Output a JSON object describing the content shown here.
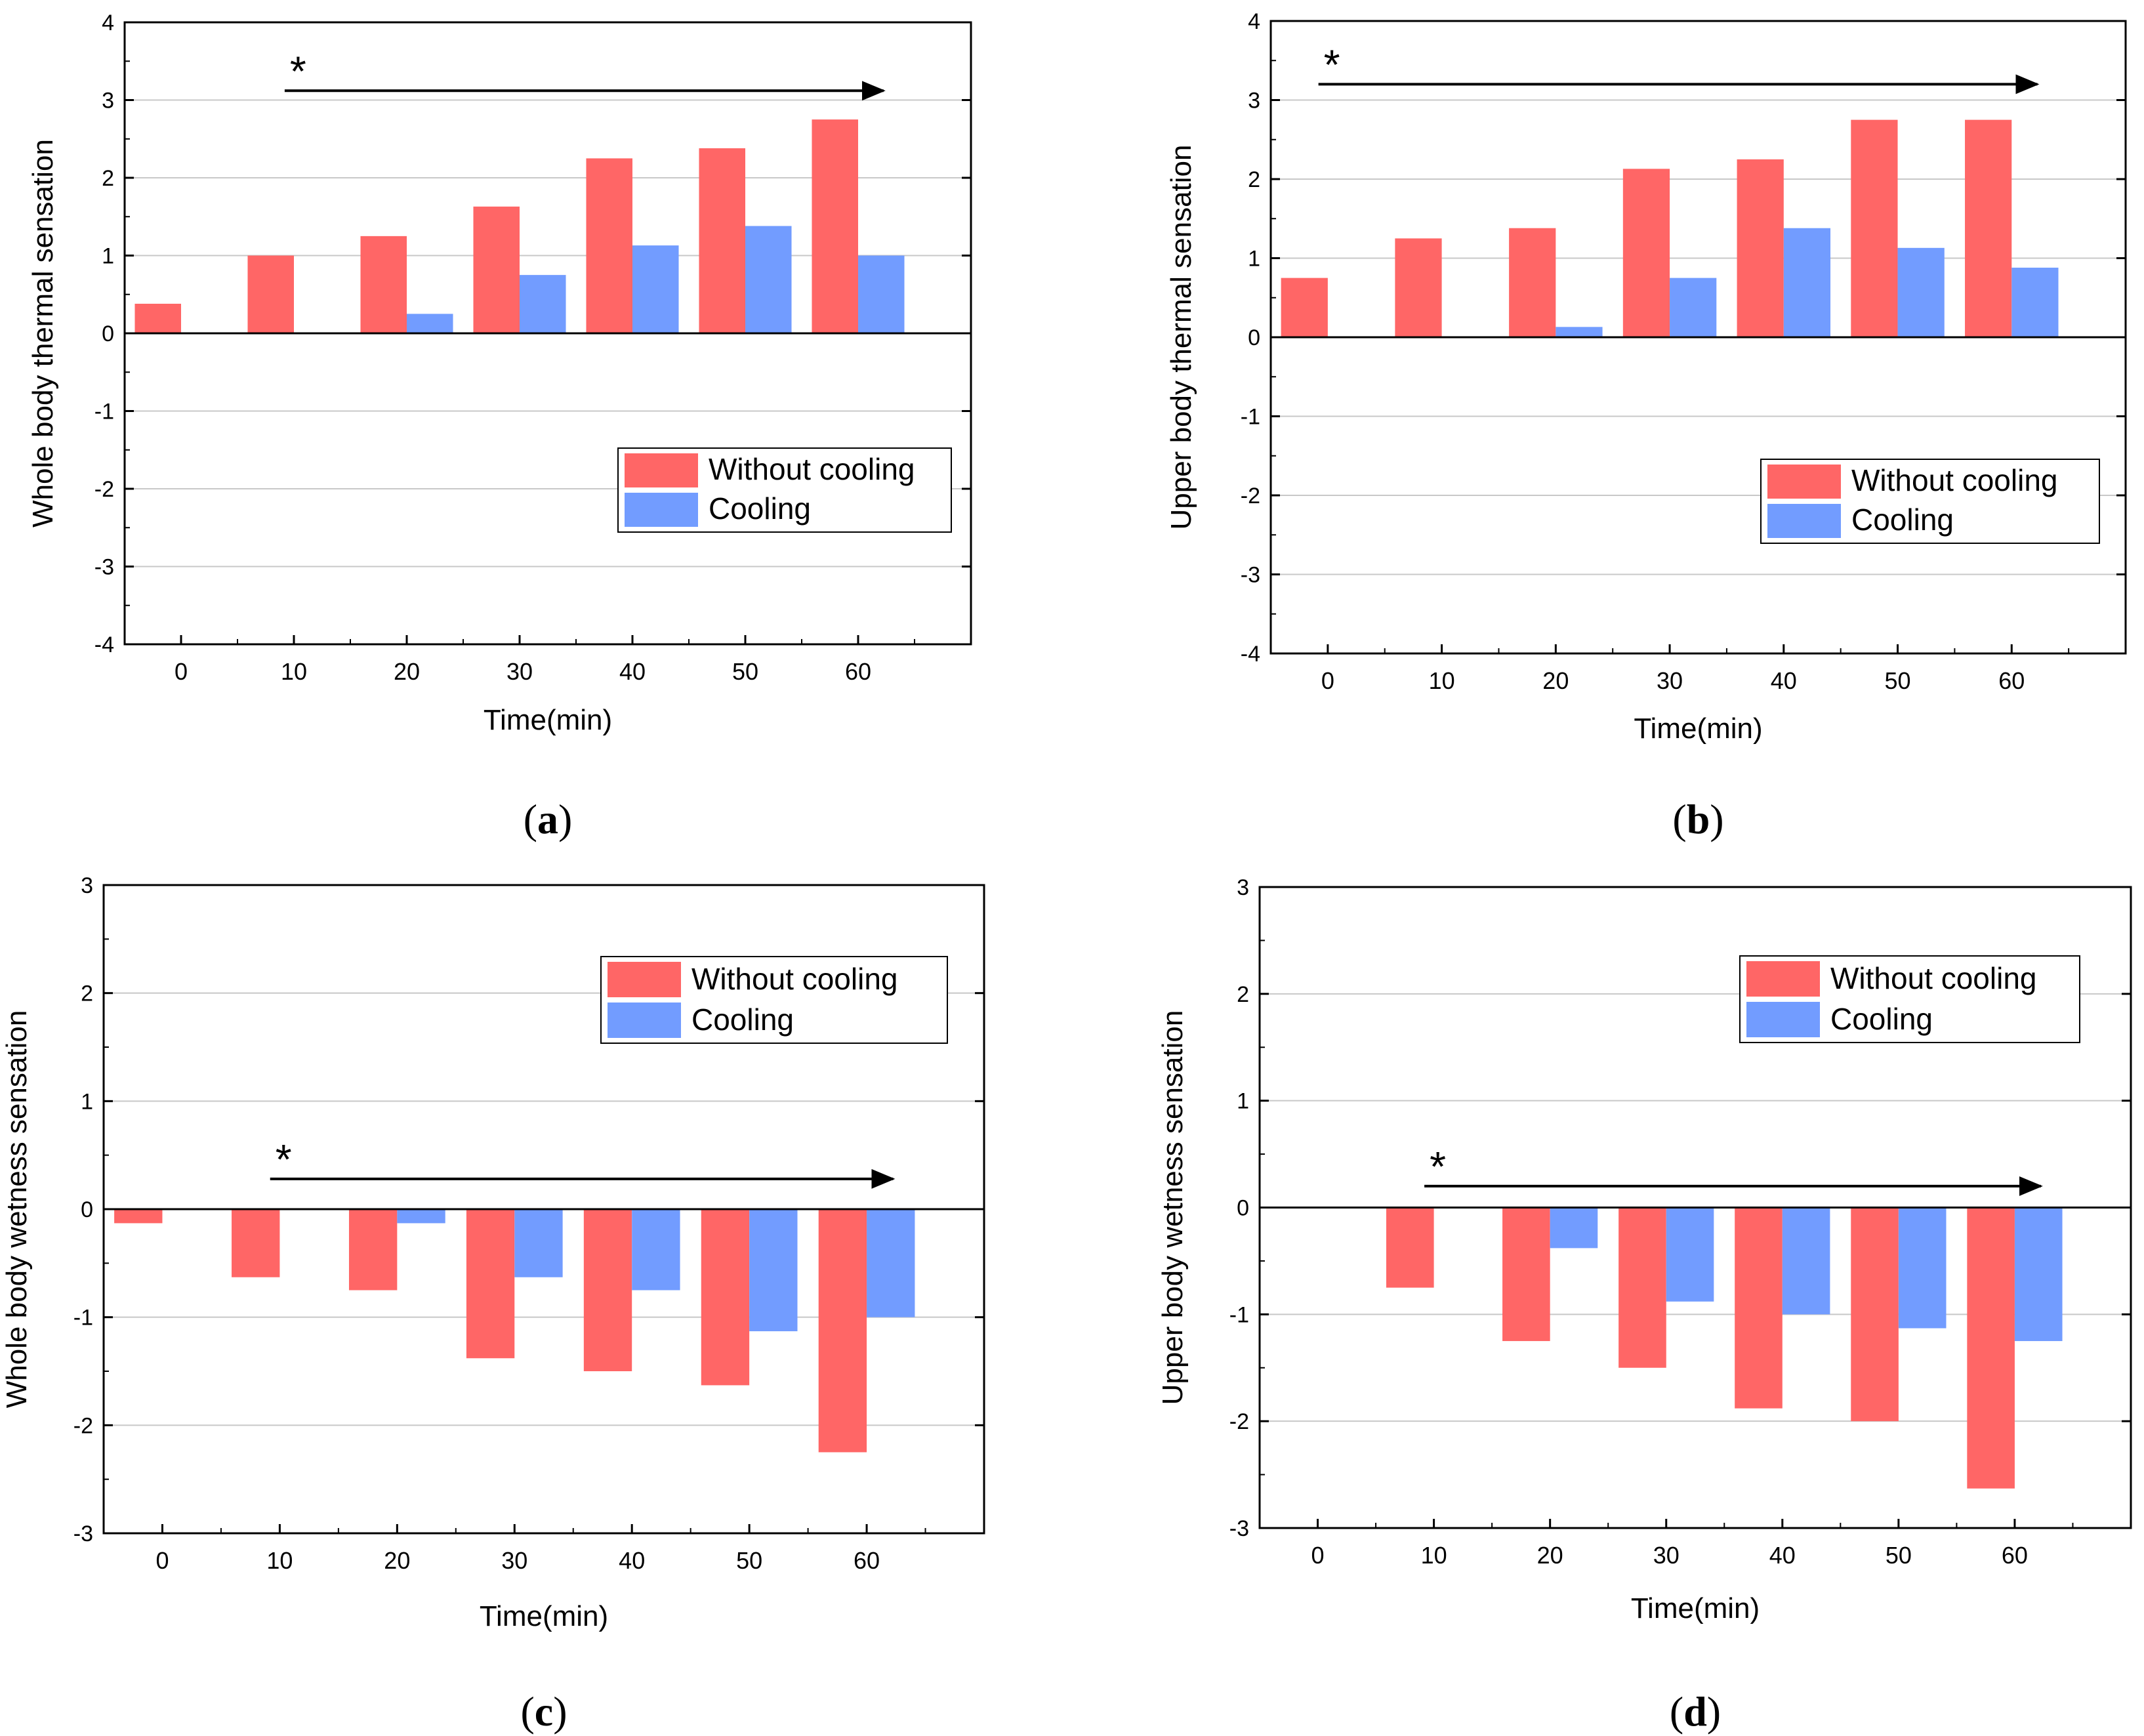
{
  "colors": {
    "without_cooling": "#FF6666",
    "cooling": "#729CFF",
    "axis": "#000000",
    "grid": "#C8C8C8"
  },
  "chart_data": [
    {
      "type": "bar",
      "panel": "a",
      "caption_letter": "a",
      "caption_open": "(",
      "caption_close": ")",
      "xlabel": "Time(min)",
      "ylabel": "Whole body thermal sensation",
      "ylim": [
        -4,
        4
      ],
      "yticks": [
        -4,
        -3,
        -2,
        -1,
        0,
        1,
        2,
        3,
        4
      ],
      "categories": [
        "0",
        "10",
        "20",
        "30",
        "40",
        "50",
        "60"
      ],
      "legend_position": "middle-right",
      "series": [
        {
          "name": "Without cooling",
          "color_key": "without_cooling",
          "values": [
            0.38,
            1.0,
            1.25,
            1.63,
            2.25,
            2.38,
            2.75
          ]
        },
        {
          "name": "Cooling",
          "color_key": "cooling",
          "values": [
            0,
            0,
            0.25,
            0.75,
            1.13,
            1.38,
            1.0
          ]
        }
      ],
      "annotation": {
        "text": "*",
        "from_category": "10",
        "to_category": "60",
        "y": 3.12
      }
    },
    {
      "type": "bar",
      "panel": "b",
      "caption_letter": "b",
      "caption_open": "(",
      "caption_close": ")",
      "xlabel": "Time(min)",
      "ylabel": "Upper body thermal sensation",
      "ylim": [
        -4,
        4
      ],
      "yticks": [
        -4,
        -3,
        -2,
        -1,
        0,
        1,
        2,
        3,
        4
      ],
      "categories": [
        "0",
        "10",
        "20",
        "30",
        "40",
        "50",
        "60"
      ],
      "legend_position": "middle-right",
      "series": [
        {
          "name": "Without cooling",
          "color_key": "without_cooling",
          "values": [
            0.75,
            1.25,
            1.38,
            2.13,
            2.25,
            2.75,
            2.75
          ]
        },
        {
          "name": "Cooling",
          "color_key": "cooling",
          "values": [
            0,
            0,
            0.13,
            0.75,
            1.38,
            1.13,
            0.88
          ]
        }
      ],
      "annotation": {
        "text": "*",
        "from_category": "0",
        "to_category": "60",
        "y": 3.2
      }
    },
    {
      "type": "bar",
      "panel": "c",
      "caption_letter": "c",
      "caption_open": "(",
      "caption_close": ")",
      "xlabel": "Time(min)",
      "ylabel": "Whole body wetness sensation",
      "ylim": [
        -3,
        3
      ],
      "yticks": [
        -3,
        -2,
        -1,
        0,
        1,
        2,
        3
      ],
      "categories": [
        "0",
        "10",
        "20",
        "30",
        "40",
        "50",
        "60"
      ],
      "legend_position": "top-right",
      "series": [
        {
          "name": "Without cooling",
          "color_key": "without_cooling",
          "values": [
            -0.13,
            -0.63,
            -0.75,
            -1.38,
            -1.5,
            -1.63,
            -2.25
          ]
        },
        {
          "name": "Cooling",
          "color_key": "cooling",
          "values": [
            0,
            0,
            -0.13,
            -0.63,
            -0.75,
            -1.13,
            -1.0
          ]
        }
      ],
      "annotation": {
        "text": "*",
        "from_category": "10",
        "to_category": "60",
        "y": 0.28
      }
    },
    {
      "type": "bar",
      "panel": "d",
      "caption_letter": "d",
      "caption_open": "(",
      "caption_close": ")",
      "xlabel": "Time(min)",
      "ylabel": "Upper body wetness sensation",
      "ylim": [
        -3,
        3
      ],
      "yticks": [
        -3,
        -2,
        -1,
        0,
        1,
        2,
        3
      ],
      "categories": [
        "0",
        "10",
        "20",
        "30",
        "40",
        "50",
        "60"
      ],
      "legend_position": "top-right",
      "series": [
        {
          "name": "Without cooling",
          "color_key": "without_cooling",
          "values": [
            0,
            -0.75,
            -1.25,
            -1.5,
            -1.88,
            -2.0,
            -2.63
          ]
        },
        {
          "name": "Cooling",
          "color_key": "cooling",
          "values": [
            0,
            0,
            -0.38,
            -0.88,
            -1.0,
            -1.13,
            -1.25
          ]
        }
      ],
      "annotation": {
        "text": "*",
        "from_category": "10",
        "to_category": "60",
        "y": 0.2
      }
    }
  ]
}
